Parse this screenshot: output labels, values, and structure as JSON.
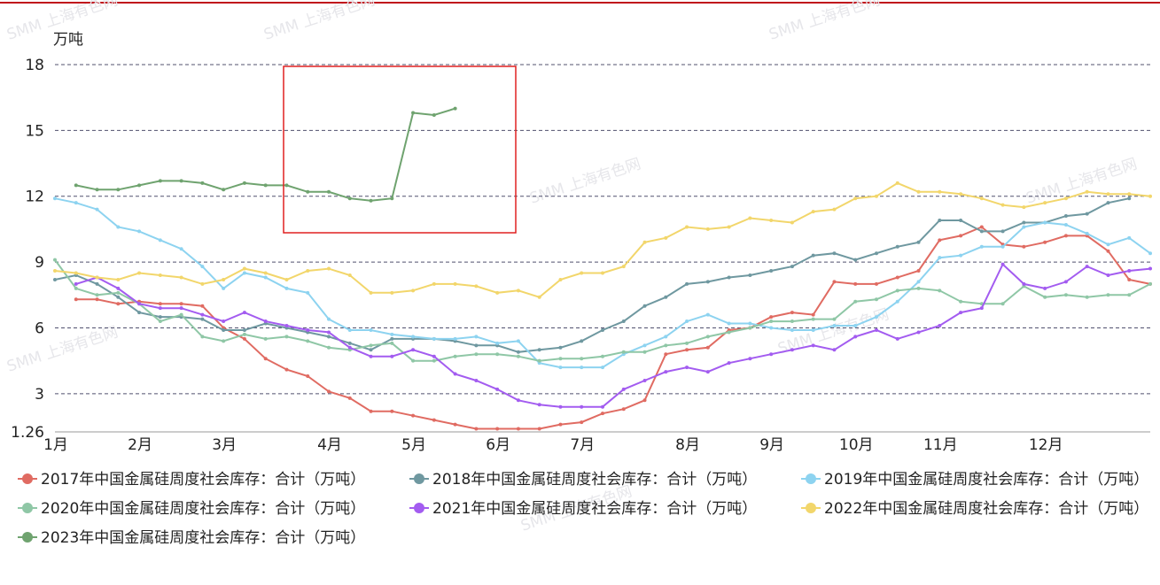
{
  "chart_data": {
    "type": "line",
    "y_axis_label": "万吨",
    "watermark": "SMM 上海有色网",
    "categories": [
      "1月",
      null,
      null,
      null,
      "2月",
      null,
      null,
      null,
      "3月",
      null,
      null,
      null,
      null,
      "4月",
      null,
      null,
      null,
      "5月",
      null,
      null,
      null,
      "6月",
      null,
      null,
      null,
      "7月",
      null,
      null,
      null,
      null,
      "8月",
      null,
      null,
      null,
      "9月",
      null,
      null,
      null,
      "10月",
      null,
      null,
      null,
      "11月",
      null,
      null,
      null,
      null,
      "12月",
      null,
      null,
      null,
      null,
      null
    ],
    "ylim": [
      1.26,
      18
    ],
    "yticks": [
      1.26,
      3,
      6,
      9,
      12,
      15,
      18
    ],
    "grid": true,
    "series": [
      {
        "name": "2017年中国金属硅周度社会库存：合计（万吨）",
        "color": "#e06b62",
        "values": [
          null,
          7.3,
          7.3,
          7.1,
          7.2,
          7.1,
          7.1,
          7.0,
          6.0,
          5.5,
          4.6,
          4.1,
          3.8,
          3.1,
          2.8,
          2.2,
          2.2,
          2.0,
          1.8,
          1.6,
          1.4,
          1.4,
          1.4,
          1.4,
          1.6,
          1.7,
          2.1,
          2.3,
          2.7,
          4.8,
          5.0,
          5.1,
          5.9,
          6.0,
          6.5,
          6.7,
          6.6,
          8.1,
          8.0,
          8.0,
          8.3,
          8.6,
          10.0,
          10.2,
          10.6,
          9.8,
          9.7,
          9.9,
          10.2,
          10.2,
          9.5,
          8.2,
          8.0
        ]
      },
      {
        "name": "2018年中国金属硅周度社会库存：合计（万吨）",
        "color": "#6f98a0",
        "values": [
          8.2,
          8.4,
          8.0,
          7.4,
          6.7,
          6.5,
          6.5,
          6.4,
          5.9,
          5.9,
          6.2,
          6.0,
          5.8,
          5.6,
          5.3,
          5.0,
          5.5,
          5.5,
          5.5,
          5.4,
          5.2,
          5.2,
          4.9,
          5.0,
          5.1,
          5.4,
          5.9,
          6.3,
          7.0,
          7.4,
          8.0,
          8.1,
          8.3,
          8.4,
          8.6,
          8.8,
          9.3,
          9.4,
          9.1,
          9.4,
          9.7,
          9.9,
          10.9,
          10.9,
          10.4,
          10.4,
          10.8,
          10.8,
          11.1,
          11.2,
          11.7,
          11.9,
          null
        ]
      },
      {
        "name": "2019年中国金属硅周度社会库存：合计（万吨）",
        "color": "#8dd3f0",
        "values": [
          11.9,
          11.7,
          11.4,
          10.6,
          10.4,
          10.0,
          9.6,
          8.8,
          7.8,
          8.5,
          8.3,
          7.8,
          7.6,
          6.4,
          5.9,
          5.9,
          5.7,
          5.6,
          5.5,
          5.5,
          5.6,
          5.3,
          5.4,
          4.4,
          4.2,
          4.2,
          4.2,
          4.8,
          5.2,
          5.6,
          6.3,
          6.6,
          6.2,
          6.2,
          6.0,
          5.9,
          5.9,
          6.1,
          6.1,
          6.5,
          7.2,
          8.1,
          9.2,
          9.3,
          9.7,
          9.7,
          10.6,
          10.8,
          10.7,
          10.3,
          9.8,
          10.1,
          9.4
        ]
      },
      {
        "name": "2020年中国金属硅周度社会库存：合计（万吨）",
        "color": "#8fc7a6",
        "values": [
          9.1,
          7.8,
          7.5,
          7.6,
          7.1,
          6.3,
          6.6,
          5.6,
          5.4,
          5.7,
          5.5,
          5.6,
          5.4,
          5.1,
          5.0,
          5.2,
          5.3,
          4.5,
          4.5,
          4.7,
          4.8,
          4.8,
          4.7,
          4.5,
          4.6,
          4.6,
          4.7,
          4.9,
          4.9,
          5.2,
          5.3,
          5.6,
          5.8,
          6.0,
          6.3,
          6.3,
          6.4,
          6.4,
          7.2,
          7.3,
          7.7,
          7.8,
          7.7,
          7.2,
          7.1,
          7.1,
          7.9,
          7.4,
          7.5,
          7.4,
          7.5,
          7.5,
          8.0
        ]
      },
      {
        "name": "2021年中国金属硅周度社会库存：合计（万吨）",
        "color": "#a35cf0",
        "values": [
          null,
          8.0,
          8.3,
          7.8,
          7.1,
          6.9,
          6.9,
          6.6,
          6.3,
          6.7,
          6.3,
          6.1,
          5.9,
          5.8,
          5.1,
          4.7,
          4.7,
          5.0,
          4.7,
          3.9,
          3.6,
          3.2,
          2.7,
          2.5,
          2.4,
          2.4,
          2.4,
          3.2,
          3.6,
          4.0,
          4.2,
          4.0,
          4.4,
          4.6,
          4.8,
          5.0,
          5.2,
          5.0,
          5.6,
          5.9,
          5.5,
          5.8,
          6.1,
          6.7,
          6.9,
          8.9,
          8.0,
          7.8,
          8.1,
          8.8,
          8.4,
          8.6,
          8.7
        ]
      },
      {
        "name": "2022年中国金属硅周度社会库存：合计（万吨）",
        "color": "#f2d66b",
        "values": [
          8.6,
          8.5,
          8.3,
          8.2,
          8.5,
          8.4,
          8.3,
          8.0,
          8.2,
          8.7,
          8.5,
          8.2,
          8.6,
          8.7,
          8.4,
          7.6,
          7.6,
          7.7,
          8.0,
          8.0,
          7.9,
          7.6,
          7.7,
          7.4,
          8.2,
          8.5,
          8.5,
          8.8,
          9.9,
          10.1,
          10.6,
          10.5,
          10.6,
          11.0,
          10.9,
          10.8,
          11.3,
          11.4,
          11.9,
          12.0,
          12.6,
          12.2,
          12.2,
          12.1,
          11.9,
          11.6,
          11.5,
          11.7,
          11.9,
          12.2,
          12.1,
          12.1,
          12.0
        ]
      },
      {
        "name": "2023年中国金属硅周度社会库存：合计（万吨）",
        "color": "#6fa36f",
        "values": [
          null,
          12.5,
          12.3,
          12.3,
          12.5,
          12.7,
          12.7,
          12.6,
          12.3,
          12.6,
          12.5,
          12.5,
          12.2,
          12.2,
          11.9,
          11.8,
          11.9,
          15.8,
          15.7,
          16.0,
          null,
          null,
          null,
          null,
          null,
          null,
          null,
          null,
          null,
          null,
          null,
          null,
          null,
          null,
          null,
          null,
          null,
          null,
          null,
          null,
          null,
          null,
          null,
          null,
          null,
          null,
          null,
          null,
          null,
          null,
          null,
          null,
          null
        ]
      }
    ]
  }
}
